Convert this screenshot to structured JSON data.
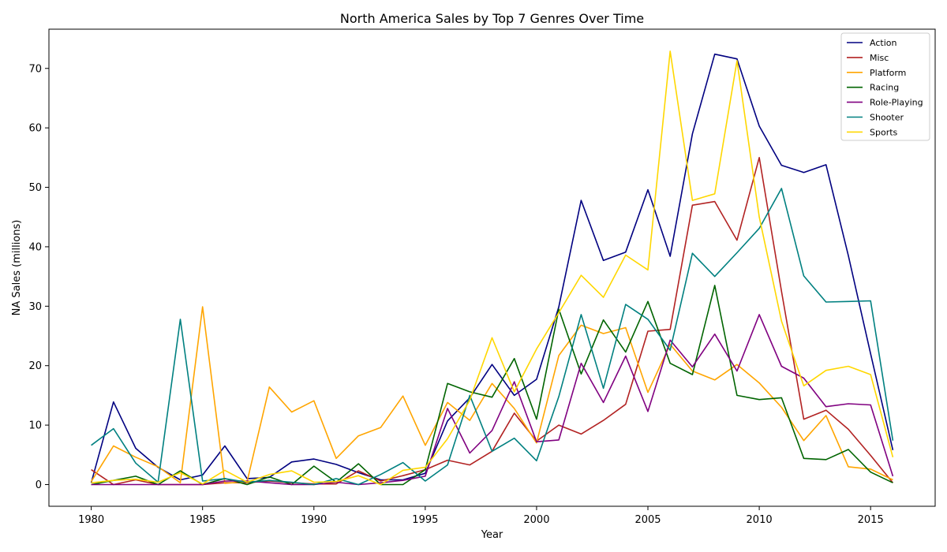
{
  "chart_data": {
    "type": "line",
    "title": "North America Sales by Top 7 Genres Over Time",
    "xlabel": "Year",
    "ylabel": "NA Sales (millions)",
    "xlim": [
      1978.1,
      2017.9
    ],
    "ylim": [
      -3.65,
      76.6
    ],
    "x_ticks": [
      1980,
      1985,
      1990,
      1995,
      2000,
      2005,
      2010,
      2015
    ],
    "y_ticks": [
      0,
      10,
      20,
      30,
      40,
      50,
      60,
      70
    ],
    "grid": false,
    "legend_position": "top-right",
    "x": [
      1980,
      1981,
      1982,
      1983,
      1984,
      1985,
      1986,
      1987,
      1988,
      1989,
      1990,
      1991,
      1992,
      1993,
      1994,
      1995,
      1996,
      1997,
      1998,
      1999,
      2000,
      2001,
      2002,
      2003,
      2004,
      2005,
      2006,
      2007,
      2008,
      2009,
      2010,
      2011,
      2012,
      2013,
      2014,
      2015,
      2016
    ],
    "series": [
      {
        "name": "Action",
        "color": "#000080",
        "values": [
          0.3,
          13.9,
          6.1,
          2.9,
          0.8,
          1.6,
          6.5,
          1.0,
          1.2,
          3.8,
          4.3,
          3.4,
          2.0,
          0.8,
          0.8,
          1.9,
          10.7,
          14.6,
          20.2,
          15.0,
          17.7,
          29.9,
          47.8,
          37.7,
          39.1,
          49.6,
          38.4,
          59.0,
          72.4,
          71.6,
          60.3,
          53.7,
          52.5,
          53.8,
          38.5,
          22.0,
          5.8
        ]
      },
      {
        "name": "Misc",
        "color": "#b22222",
        "values": [
          2.5,
          0.0,
          0.8,
          0.0,
          0.0,
          0.0,
          0.3,
          0.3,
          0.6,
          0.3,
          0.1,
          0.1,
          2.3,
          0.6,
          1.5,
          2.5,
          4.1,
          3.3,
          5.6,
          12.0,
          7.3,
          10.0,
          8.5,
          10.8,
          13.5,
          25.8,
          26.1,
          47.0,
          47.6,
          41.1,
          55.0,
          32.5,
          11.0,
          12.5,
          9.3,
          4.9,
          0.3
        ]
      },
      {
        "name": "Platform",
        "color": "#ffa500",
        "values": [
          0.5,
          6.5,
          4.6,
          3.0,
          0.3,
          29.9,
          0.2,
          0.5,
          16.4,
          12.2,
          14.1,
          4.4,
          8.2,
          9.6,
          14.9,
          6.6,
          13.8,
          10.8,
          17.0,
          12.8,
          7.0,
          21.7,
          26.8,
          25.4,
          26.4,
          15.5,
          23.6,
          19.1,
          17.6,
          20.2,
          17.1,
          13.0,
          7.4,
          11.6,
          3.0,
          2.6,
          0.8
        ]
      },
      {
        "name": "Racing",
        "color": "#006400",
        "values": [
          0.0,
          0.7,
          1.4,
          0.0,
          2.3,
          0.0,
          1.0,
          0.0,
          1.3,
          0.0,
          3.1,
          0.4,
          3.5,
          0.0,
          0.0,
          2.5,
          17.0,
          15.6,
          14.7,
          21.2,
          11.0,
          29.5,
          18.6,
          27.7,
          22.3,
          30.8,
          20.4,
          18.5,
          33.5,
          15.0,
          14.3,
          14.6,
          4.4,
          4.2,
          5.9,
          2.1,
          0.3
        ]
      },
      {
        "name": "Role-Playing",
        "color": "#800080",
        "values": [
          0.0,
          0.0,
          0.0,
          0.0,
          0.0,
          0.0,
          0.6,
          0.6,
          0.3,
          0.0,
          0.0,
          0.4,
          0.0,
          0.3,
          0.7,
          1.4,
          12.8,
          5.3,
          9.1,
          17.3,
          7.2,
          7.5,
          20.4,
          13.8,
          21.6,
          12.3,
          24.3,
          19.8,
          25.3,
          19.1,
          28.6,
          19.9,
          17.9,
          13.1,
          13.6,
          13.4,
          1.4
        ]
      },
      {
        "name": "Shooter",
        "color": "#008080",
        "values": [
          6.6,
          9.4,
          3.6,
          0.4,
          27.8,
          0.6,
          1.0,
          0.4,
          0.7,
          0.4,
          0.0,
          1.0,
          0.0,
          1.7,
          3.7,
          0.6,
          3.3,
          15.0,
          5.6,
          7.8,
          4.0,
          14.8,
          28.6,
          16.2,
          30.3,
          27.8,
          22.6,
          38.9,
          35.0,
          39.0,
          43.1,
          49.8,
          35.1,
          30.7,
          30.8,
          30.9,
          7.4
        ]
      },
      {
        "name": "Sports",
        "color": "#ffd700",
        "values": [
          0.3,
          0.7,
          0.9,
          0.4,
          2.0,
          0.1,
          2.4,
          0.4,
          1.7,
          2.3,
          0.4,
          0.5,
          1.5,
          0.0,
          2.4,
          2.9,
          7.7,
          14.2,
          24.7,
          15.6,
          22.8,
          28.9,
          35.2,
          31.5,
          38.6,
          36.1,
          72.9,
          47.8,
          48.9,
          71.3,
          45.0,
          27.5,
          16.6,
          19.2,
          19.9,
          18.5,
          4.6
        ]
      }
    ]
  }
}
